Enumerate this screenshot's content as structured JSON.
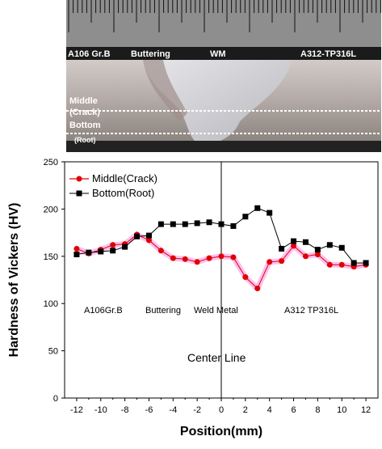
{
  "photo": {
    "labels": {
      "base_left": "A106 Gr.B",
      "buttering": "Buttering",
      "weld_metal": "WM",
      "base_right": "A312-TP316L",
      "middle_line1": "Middle",
      "middle_line2": "(Crack)",
      "bottom_line1": "Bottom",
      "bottom_line2": "(Root)"
    },
    "colors": {
      "ruler": "#8e8e8e",
      "steel": "#a39a96",
      "weld": "#cfcfd2",
      "dark": "#1b1b1b"
    }
  },
  "chart_data": {
    "type": "line",
    "xlabel": "Position(mm)",
    "ylabel": "Hardness of Vickers (HV)",
    "xlim": [
      -13,
      13
    ],
    "ylim": [
      0,
      250
    ],
    "xticks": [
      -12,
      -10,
      -8,
      -6,
      -4,
      -2,
      0,
      2,
      4,
      6,
      8,
      10,
      12
    ],
    "yticks": [
      0,
      50,
      100,
      150,
      200,
      250
    ],
    "legend_position": "top-left",
    "series": [
      {
        "name": "Middle(Crack)",
        "marker": "circle",
        "color": "#e00000",
        "x": [
          -12,
          -11,
          -10,
          -9,
          -8,
          -7,
          -6,
          -5,
          -4,
          -3,
          -2,
          -1,
          0,
          1,
          2,
          3,
          4,
          5,
          6,
          7,
          8,
          9,
          10,
          11,
          12
        ],
        "values": [
          158,
          153,
          157,
          162,
          163,
          173,
          167,
          156,
          148,
          147,
          144,
          148,
          150,
          149,
          128,
          116,
          144,
          145,
          161,
          150,
          152,
          141,
          141,
          139,
          141
        ]
      },
      {
        "name": "Bottom(Root)",
        "marker": "square",
        "color": "#000000",
        "x": [
          -12,
          -11,
          -10,
          -9,
          -8,
          -7,
          -6,
          -5,
          -4,
          -3,
          -2,
          -1,
          0,
          1,
          2,
          3,
          4,
          5,
          6,
          7,
          8,
          9,
          10,
          11,
          12
        ],
        "values": [
          152,
          154,
          155,
          156,
          160,
          171,
          172,
          184,
          184,
          184,
          185,
          186,
          184,
          182,
          192,
          201,
          196,
          158,
          166,
          165,
          157,
          162,
          159,
          143,
          143
        ]
      }
    ],
    "annotations": {
      "base_left": "A106Gr.B",
      "buttering": "Buttering",
      "weld_metal": "Weld  Metal",
      "base_right": "A312  TP316L",
      "center_line": "Center Line"
    }
  }
}
